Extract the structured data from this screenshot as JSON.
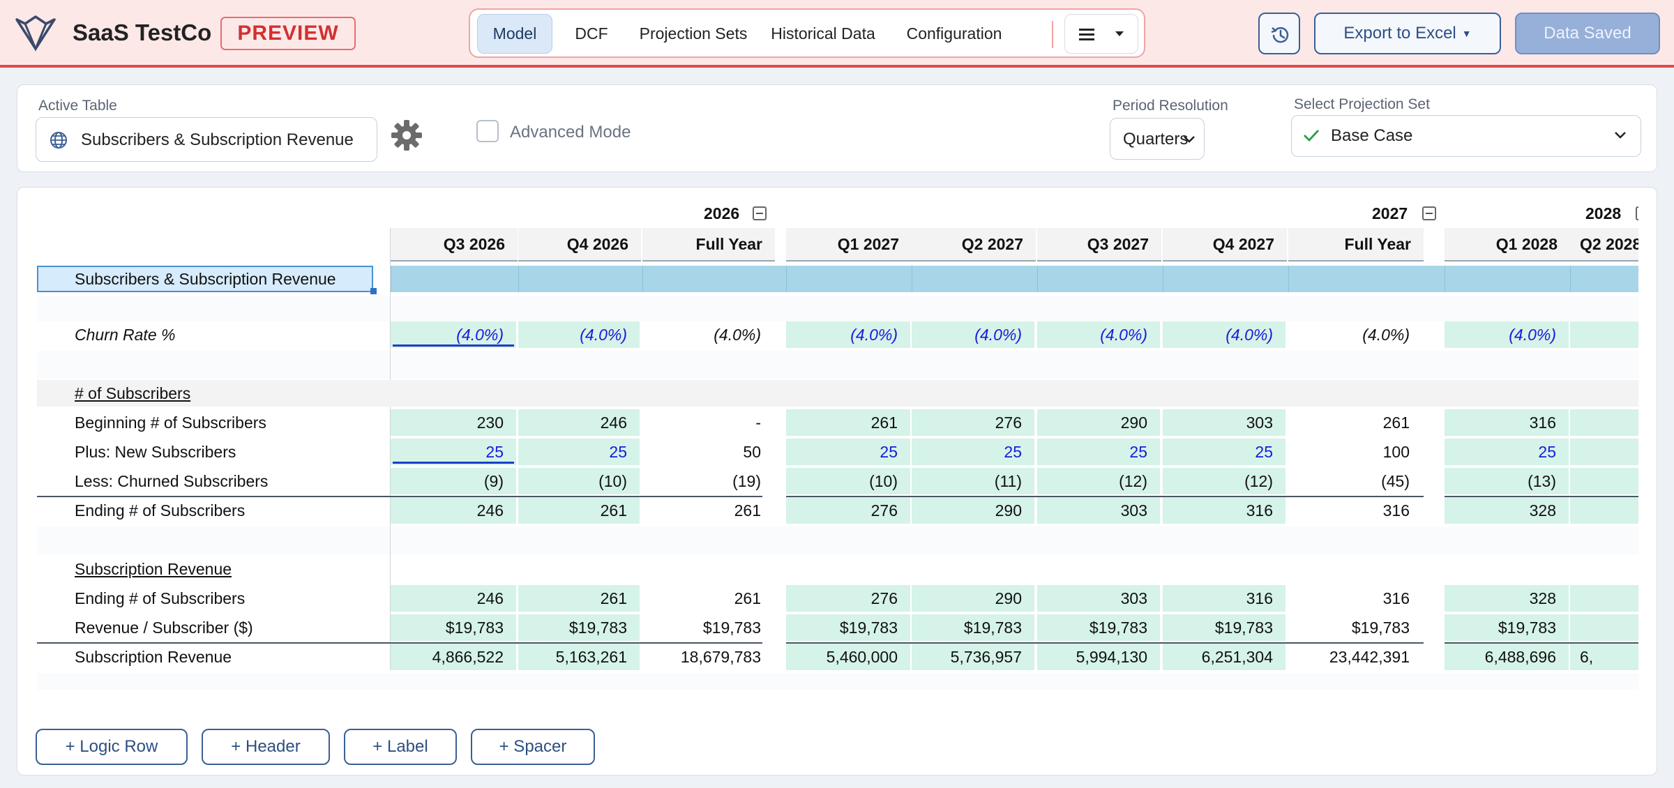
{
  "header": {
    "brand": "SaaS TestCo",
    "badge": "PREVIEW",
    "tabs": [
      {
        "label": "Model",
        "active": true
      },
      {
        "label": "DCF"
      },
      {
        "label": "Projection Sets"
      },
      {
        "label": "Historical Data"
      },
      {
        "label": "Configuration"
      }
    ],
    "menu_icon": "hamburger-icon",
    "history_icon": "history-icon",
    "export_label": "Export to Excel",
    "saved_label": "Data Saved"
  },
  "toolbar": {
    "active_table_label": "Active Table",
    "active_table_value": "Subscribers & Subscription Revenue",
    "advanced_mode_label": "Advanced Mode",
    "advanced_mode_checked": false,
    "period_label": "Period Resolution",
    "period_value": "Quarters",
    "projection_label": "Select Projection Set",
    "projection_value": "Base Case"
  },
  "grid": {
    "years": [
      "2026",
      "2027",
      "2028"
    ],
    "columns": [
      "Q3 2026",
      "Q4 2026",
      "Full Year",
      "Q1 2027",
      "Q2 2027",
      "Q3 2027",
      "Q4 2027",
      "Full Year",
      "Q1 2028",
      "Q2 2028"
    ],
    "title_row": "Subscribers & Subscription Revenue",
    "rows": [
      {
        "label": "Churn Rate %",
        "italic": true,
        "values": [
          "(4.0%)",
          "(4.0%)",
          "(4.0%)",
          "(4.0%)",
          "(4.0%)",
          "(4.0%)",
          "(4.0%)",
          "(4.0%)",
          "(4.0%)",
          ""
        ]
      },
      {
        "label": "# of Subscribers",
        "section": true
      },
      {
        "label": "Beginning # of Subscribers",
        "values": [
          "230",
          "246",
          "-",
          "261",
          "276",
          "290",
          "303",
          "261",
          "316",
          ""
        ]
      },
      {
        "label": "Plus: New Subscribers",
        "values": [
          "25",
          "25",
          "50",
          "25",
          "25",
          "25",
          "25",
          "100",
          "25",
          ""
        ]
      },
      {
        "label": "Less: Churned Subscribers",
        "values": [
          "(9)",
          "(10)",
          "(19)",
          "(10)",
          "(11)",
          "(12)",
          "(12)",
          "(45)",
          "(13)",
          ""
        ]
      },
      {
        "label": "Ending # of Subscribers",
        "total": true,
        "values": [
          "246",
          "261",
          "261",
          "276",
          "290",
          "303",
          "316",
          "316",
          "328",
          ""
        ]
      },
      {
        "label": "Subscription Revenue",
        "section": true
      },
      {
        "label": "Ending # of Subscribers",
        "values": [
          "246",
          "261",
          "261",
          "276",
          "290",
          "303",
          "316",
          "316",
          "328",
          ""
        ]
      },
      {
        "label": "Revenue / Subscriber ($)",
        "values": [
          "$19,783",
          "$19,783",
          "$19,783",
          "$19,783",
          "$19,783",
          "$19,783",
          "$19,783",
          "$19,783",
          "$19,783",
          ""
        ]
      },
      {
        "label": "Subscription Revenue",
        "total": true,
        "values": [
          "4,866,522",
          "5,163,261",
          "18,679,783",
          "5,460,000",
          "5,736,957",
          "5,994,130",
          "6,251,304",
          "23,442,391",
          "6,488,696",
          "6,"
        ]
      }
    ]
  },
  "actions": [
    "+ Logic Row",
    "+ Header",
    "+ Label",
    "+ Spacer"
  ]
}
